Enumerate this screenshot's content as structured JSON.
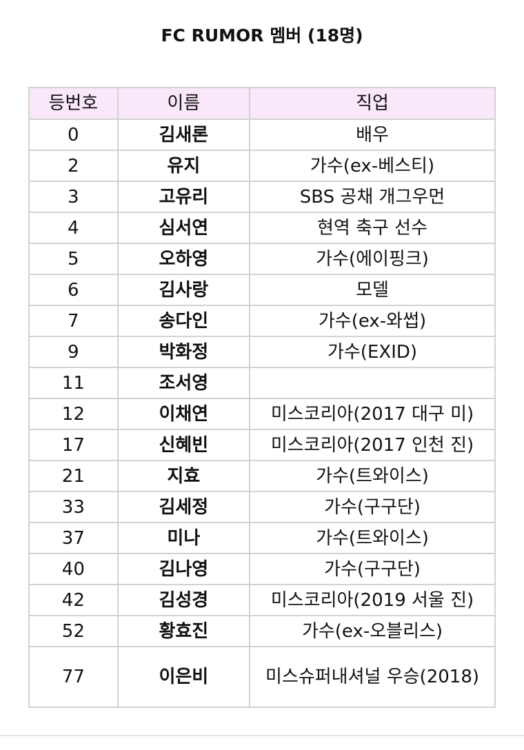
{
  "title": "FC RUMOR 멤버 (18명)",
  "table": {
    "headers": [
      "등번호",
      "이름",
      "직업"
    ],
    "header_bg": "#f9e8f9",
    "rows": [
      {
        "number": "0",
        "name": "김새론",
        "job": "배우"
      },
      {
        "number": "2",
        "name": "유지",
        "job": "가수(ex-베스티)"
      },
      {
        "number": "3",
        "name": "고유리",
        "job": "SBS 공채 개그우먼"
      },
      {
        "number": "4",
        "name": "심서연",
        "job": "현역 축구 선수"
      },
      {
        "number": "5",
        "name": "오하영",
        "job": "가수(에이핑크)"
      },
      {
        "number": "6",
        "name": "김사랑",
        "job": "모델"
      },
      {
        "number": "7",
        "name": "송다인",
        "job": "가수(ex-와썹)"
      },
      {
        "number": "9",
        "name": "박화정",
        "job": "가수(EXID)"
      },
      {
        "number": "11",
        "name": "조서영",
        "job": ""
      },
      {
        "number": "12",
        "name": "이채연",
        "job": "미스코리아(2017 대구 미)"
      },
      {
        "number": "17",
        "name": "신혜빈",
        "job": "미스코리아(2017 인천 진)"
      },
      {
        "number": "21",
        "name": "지효",
        "job": "가수(트와이스)"
      },
      {
        "number": "33",
        "name": "김세정",
        "job": "가수(구구단)"
      },
      {
        "number": "37",
        "name": "미나",
        "job": "가수(트와이스)"
      },
      {
        "number": "40",
        "name": "김나영",
        "job": "가수(구구단)"
      },
      {
        "number": "42",
        "name": "김성경",
        "job": "미스코리아(2019 서울 진)"
      },
      {
        "number": "52",
        "name": "황효진",
        "job": "가수(ex-오블리스)"
      },
      {
        "number": "77",
        "name": "이은비",
        "job": "미스슈퍼내셔널 우승(2018)"
      }
    ]
  }
}
